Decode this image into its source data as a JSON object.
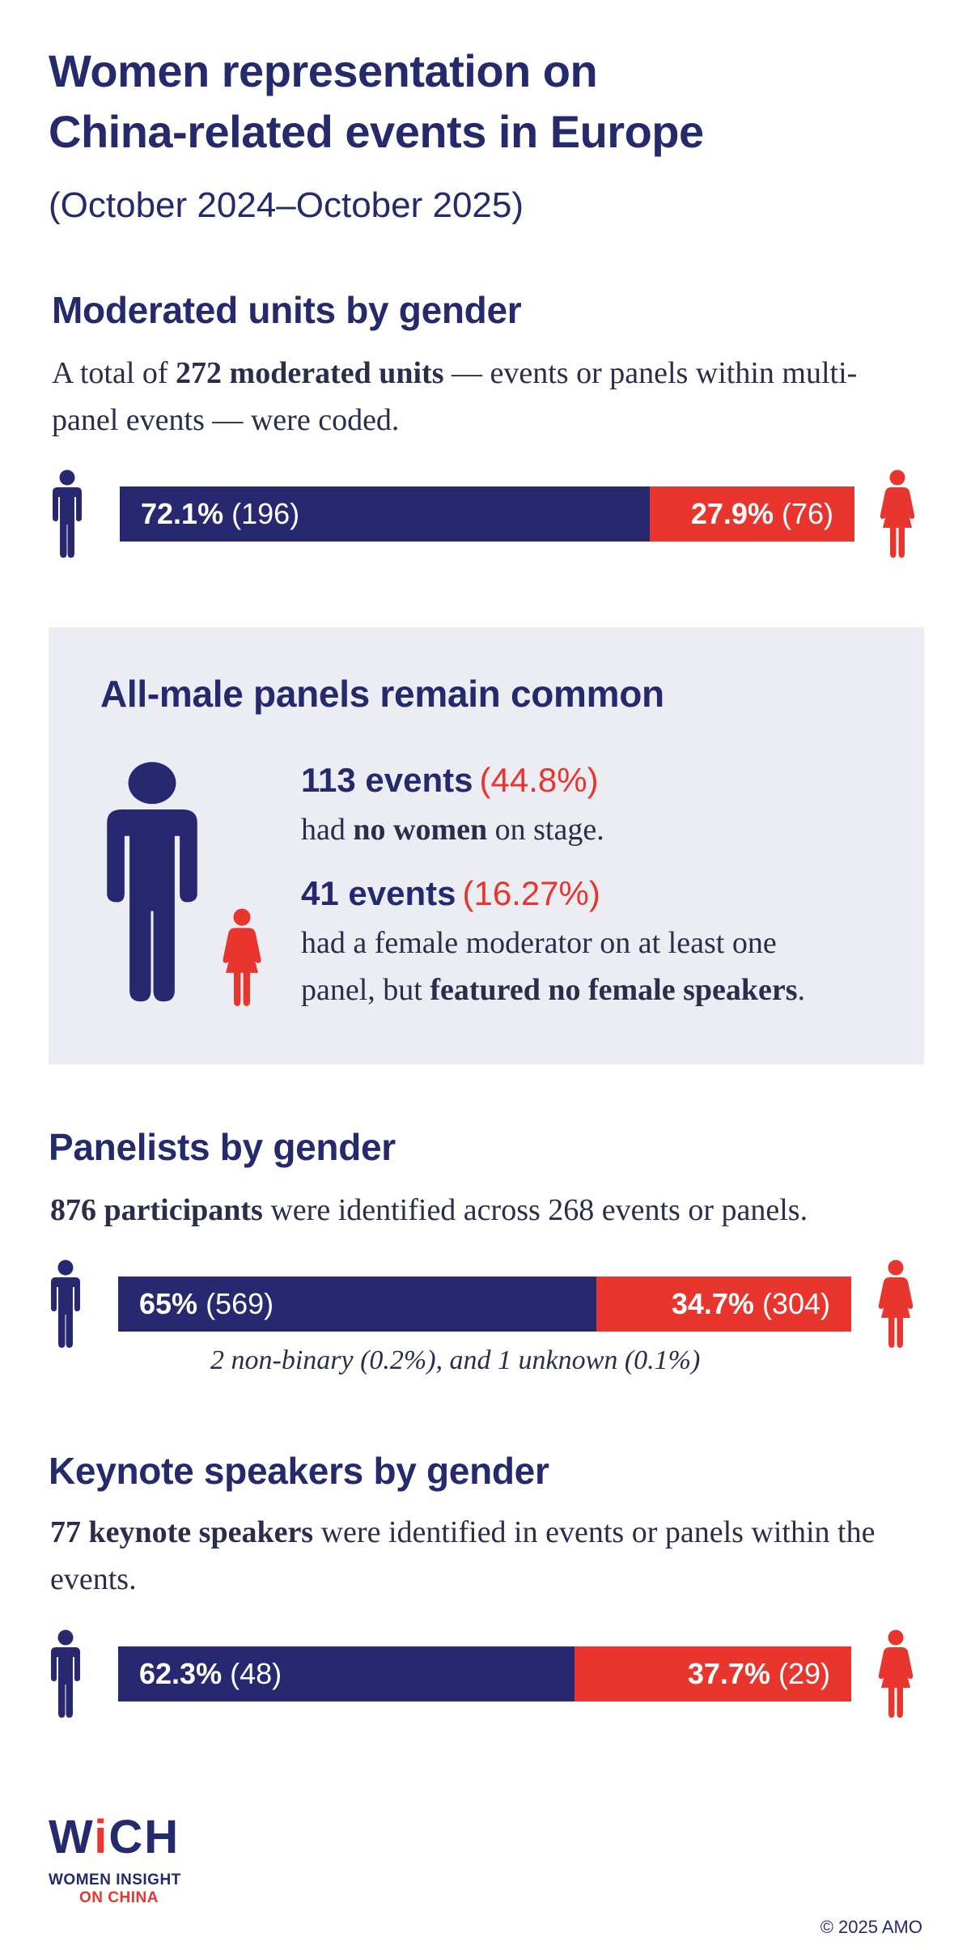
{
  "header": {
    "title_line1": "Women representation on",
    "title_line2": "China-related events in Europe",
    "subtitle": "(October 2024–October 2025)"
  },
  "moderated": {
    "heading": "Moderated units by gender",
    "desc_pre": "A total of ",
    "desc_bold": "272 moderated units",
    "desc_post": " — events or panels within multi-panel events — were coded."
  },
  "allmale": {
    "heading": "All-male panels remain common",
    "stat1_big": "113 events",
    "stat1_pct": "(44.8%)",
    "stat1_pre": "had ",
    "stat1_bold": "no women",
    "stat1_post": " on stage.",
    "stat2_big": "41 events",
    "stat2_pct": "(16.27%)",
    "stat2_line1": "had a female moderator on at least one",
    "stat2_pre": "panel, but ",
    "stat2_bold": "featured no female speakers",
    "stat2_post": "."
  },
  "panelists": {
    "heading": "Panelists by gender",
    "desc_bold": "876 participants",
    "desc_post": " were identified across 268 events or panels.",
    "note": "2 non-binary (0.2%), and 1 unknown (0.1%)"
  },
  "keynote": {
    "heading": "Keynote speakers by gender",
    "desc_bold": "77 keynote speakers",
    "desc_post": " were identified in events or panels within the events."
  },
  "footer": {
    "logo_w": "W",
    "logo_i": "i",
    "logo_ch": "CH",
    "logo_sub1": "WOMEN INSIGHT",
    "logo_sub2": "ON CHINA",
    "copyright": "© 2025 AMO"
  },
  "colors": {
    "male": "#282870",
    "female": "#e8352e",
    "panel_bg": "#ececf3"
  },
  "chart_data": [
    {
      "type": "bar",
      "title": "Moderated units by gender",
      "categories": [
        "Male",
        "Female"
      ],
      "values": [
        72.1,
        27.9
      ],
      "counts": [
        196,
        76
      ],
      "labels": [
        "72.1%",
        "27.9%"
      ],
      "count_labels": [
        "(196)",
        "(76)"
      ]
    },
    {
      "type": "bar",
      "title": "Panelists by gender",
      "categories": [
        "Male",
        "Female"
      ],
      "values": [
        65,
        34.7
      ],
      "counts": [
        569,
        304
      ],
      "labels": [
        "65%",
        "34.7%"
      ],
      "count_labels": [
        "(569)",
        "(304)"
      ]
    },
    {
      "type": "bar",
      "title": "Keynote speakers by gender",
      "categories": [
        "Male",
        "Female"
      ],
      "values": [
        62.3,
        37.7
      ],
      "counts": [
        48,
        29
      ],
      "labels": [
        "62.3%",
        "37.7%"
      ],
      "count_labels": [
        "(48)",
        "(29)"
      ]
    }
  ]
}
